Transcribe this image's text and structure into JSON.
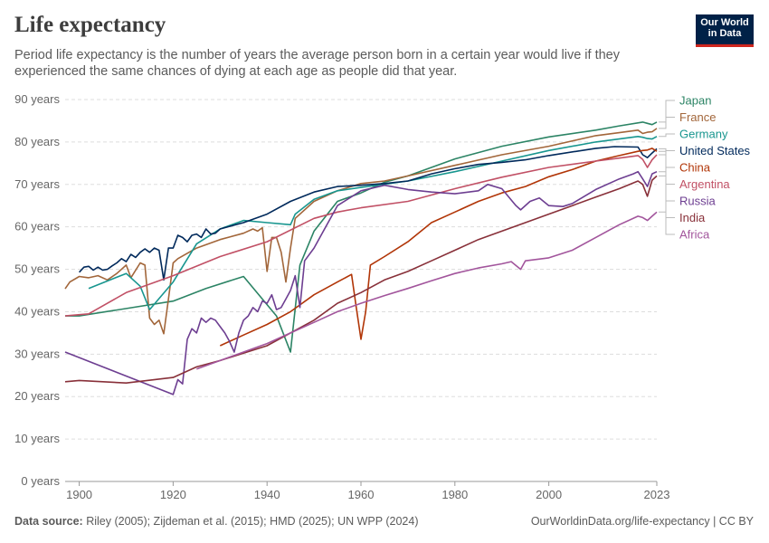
{
  "header": {
    "title": "Life expectancy",
    "subtitle": "Period life expectancy is the number of years the average person born in a certain year would live if they experienced the same chances of dying at each age as people did that year.",
    "logo_line1": "Our World",
    "logo_line2": "in Data"
  },
  "footer": {
    "source_label": "Data source:",
    "source_text": "Riley (2005); Zijdeman et al. (2015); HMD (2025); UN WPP (2024)",
    "link_text": "OurWorldinData.org/life-expectancy | CC BY"
  },
  "chart_data": {
    "type": "line",
    "x_ticks": [
      "1900",
      "1920",
      "1940",
      "1960",
      "1980",
      "2000",
      "2023"
    ],
    "y_ticks": [
      "0 years",
      "10 years",
      "20 years",
      "30 years",
      "40 years",
      "50 years",
      "60 years",
      "70 years",
      "80 years",
      "90 years"
    ],
    "xlim": [
      1897,
      2023
    ],
    "ylim": [
      0,
      90
    ],
    "grid": true,
    "legend_placement": "right, inline labels",
    "series": [
      {
        "name": "Japan",
        "color": "#2c8465",
        "points": [
          [
            1897,
            39
          ],
          [
            1900,
            39
          ],
          [
            1920,
            42.5
          ],
          [
            1927,
            45.5
          ],
          [
            1935,
            48.3
          ],
          [
            1942,
            39
          ],
          [
            1945,
            30.5
          ],
          [
            1947,
            51
          ],
          [
            1950,
            59
          ],
          [
            1955,
            66
          ],
          [
            1960,
            68
          ],
          [
            1965,
            70.5
          ],
          [
            1970,
            72
          ],
          [
            1980,
            76
          ],
          [
            1990,
            79
          ],
          [
            2000,
            81.2
          ],
          [
            2010,
            82.8
          ],
          [
            2015,
            83.8
          ],
          [
            2020,
            84.7
          ],
          [
            2021,
            84.4
          ],
          [
            2022,
            84.1
          ],
          [
            2023,
            84.7
          ]
        ]
      },
      {
        "name": "France",
        "color": "#a2663a",
        "points": [
          [
            1897,
            45.4
          ],
          [
            1898,
            47
          ],
          [
            1900,
            48.3
          ],
          [
            1902,
            48
          ],
          [
            1904,
            48.5
          ],
          [
            1906,
            47.5
          ],
          [
            1908,
            49
          ],
          [
            1910,
            51
          ],
          [
            1911,
            48
          ],
          [
            1913,
            51.5
          ],
          [
            1914,
            51
          ],
          [
            1915,
            38.5
          ],
          [
            1916,
            37
          ],
          [
            1917,
            38
          ],
          [
            1918,
            34.8
          ],
          [
            1919,
            43
          ],
          [
            1920,
            51.5
          ],
          [
            1921,
            52.5
          ],
          [
            1925,
            55
          ],
          [
            1930,
            57
          ],
          [
            1935,
            58.5
          ],
          [
            1937,
            59.5
          ],
          [
            1938,
            59
          ],
          [
            1939,
            59.8
          ],
          [
            1940,
            49.5
          ],
          [
            1941,
            57.5
          ],
          [
            1942,
            57.5
          ],
          [
            1943,
            54
          ],
          [
            1944,
            47
          ],
          [
            1945,
            55
          ],
          [
            1946,
            62
          ],
          [
            1950,
            66
          ],
          [
            1955,
            68.5
          ],
          [
            1960,
            70.2
          ],
          [
            1965,
            70.8
          ],
          [
            1970,
            72
          ],
          [
            1980,
            74.5
          ],
          [
            1990,
            77
          ],
          [
            2000,
            79
          ],
          [
            2010,
            81.5
          ],
          [
            2015,
            82.2
          ],
          [
            2019,
            82.8
          ],
          [
            2020,
            82
          ],
          [
            2021,
            82.3
          ],
          [
            2022,
            82.4
          ],
          [
            2023,
            83.2
          ]
        ]
      },
      {
        "name": "Germany",
        "color": "#18968f",
        "points": [
          [
            1902,
            45.5
          ],
          [
            1910,
            49
          ],
          [
            1913,
            46
          ],
          [
            1915,
            40.5
          ],
          [
            1920,
            47
          ],
          [
            1925,
            56
          ],
          [
            1930,
            59.5
          ],
          [
            1935,
            61.5
          ],
          [
            1940,
            61
          ],
          [
            1945,
            60.5
          ],
          [
            1946,
            63
          ],
          [
            1950,
            66.5
          ],
          [
            1955,
            68.5
          ],
          [
            1960,
            69.3
          ],
          [
            1970,
            70.8
          ],
          [
            1980,
            73
          ],
          [
            1990,
            75.5
          ],
          [
            2000,
            78
          ],
          [
            2010,
            80
          ],
          [
            2019,
            81.3
          ],
          [
            2020,
            81.1
          ],
          [
            2021,
            80.8
          ],
          [
            2022,
            80.7
          ],
          [
            2023,
            81.3
          ]
        ]
      },
      {
        "name": "United States",
        "color": "#00295b",
        "points": [
          [
            1900,
            49.3
          ],
          [
            1901,
            50.5
          ],
          [
            1902,
            50.7
          ],
          [
            1903,
            49.8
          ],
          [
            1904,
            50.5
          ],
          [
            1905,
            49.8
          ],
          [
            1906,
            50
          ],
          [
            1907,
            50.8
          ],
          [
            1908,
            51.5
          ],
          [
            1909,
            52.5
          ],
          [
            1910,
            51.8
          ],
          [
            1911,
            53.5
          ],
          [
            1912,
            52.8
          ],
          [
            1913,
            54
          ],
          [
            1914,
            54.8
          ],
          [
            1915,
            54
          ],
          [
            1916,
            55
          ],
          [
            1917,
            54.5
          ],
          [
            1918,
            47.5
          ],
          [
            1919,
            55
          ],
          [
            1920,
            55
          ],
          [
            1921,
            58
          ],
          [
            1922,
            57.5
          ],
          [
            1923,
            56.5
          ],
          [
            1924,
            58
          ],
          [
            1925,
            58.3
          ],
          [
            1926,
            57.5
          ],
          [
            1927,
            59.5
          ],
          [
            1928,
            58.3
          ],
          [
            1929,
            58.5
          ],
          [
            1930,
            59.5
          ],
          [
            1935,
            61
          ],
          [
            1940,
            63
          ],
          [
            1945,
            66
          ],
          [
            1950,
            68.2
          ],
          [
            1955,
            69.5
          ],
          [
            1960,
            69.8
          ],
          [
            1965,
            70.2
          ],
          [
            1970,
            70.8
          ],
          [
            1975,
            72.5
          ],
          [
            1980,
            73.7
          ],
          [
            1985,
            74.7
          ],
          [
            1990,
            75.2
          ],
          [
            1995,
            75.8
          ],
          [
            2000,
            76.8
          ],
          [
            2010,
            78.5
          ],
          [
            2014,
            78.9
          ],
          [
            2019,
            78.8
          ],
          [
            2020,
            77
          ],
          [
            2021,
            76.3
          ],
          [
            2022,
            77.4
          ],
          [
            2023,
            78.4
          ]
        ]
      },
      {
        "name": "China",
        "color": "#b13507",
        "points": [
          [
            1930,
            32
          ],
          [
            1935,
            34.5
          ],
          [
            1940,
            37
          ],
          [
            1945,
            40
          ],
          [
            1950,
            44
          ],
          [
            1955,
            47
          ],
          [
            1958,
            48.8
          ],
          [
            1959,
            41
          ],
          [
            1960,
            33.5
          ],
          [
            1961,
            40
          ],
          [
            1962,
            51
          ],
          [
            1965,
            53
          ],
          [
            1970,
            56.5
          ],
          [
            1975,
            61
          ],
          [
            1980,
            63.5
          ],
          [
            1985,
            66
          ],
          [
            1990,
            68
          ],
          [
            1995,
            69.5
          ],
          [
            2000,
            71.8
          ],
          [
            2005,
            73.5
          ],
          [
            2010,
            75.5
          ],
          [
            2015,
            76.8
          ],
          [
            2019,
            77.8
          ],
          [
            2020,
            78
          ],
          [
            2021,
            78.1
          ],
          [
            2022,
            78.5
          ],
          [
            2023,
            77.8
          ]
        ]
      },
      {
        "name": "Argentina",
        "color": "#c15065",
        "points": [
          [
            1897,
            39
          ],
          [
            1902,
            39.5
          ],
          [
            1910,
            44.5
          ],
          [
            1920,
            48.5
          ],
          [
            1930,
            53
          ],
          [
            1940,
            56.5
          ],
          [
            1950,
            62
          ],
          [
            1955,
            63.5
          ],
          [
            1960,
            64.5
          ],
          [
            1970,
            66
          ],
          [
            1980,
            69
          ],
          [
            1990,
            71.7
          ],
          [
            2000,
            74
          ],
          [
            2010,
            75.5
          ],
          [
            2015,
            76.2
          ],
          [
            2019,
            76.8
          ],
          [
            2020,
            75.9
          ],
          [
            2021,
            74
          ],
          [
            2022,
            75.8
          ],
          [
            2023,
            77
          ]
        ]
      },
      {
        "name": "Russia",
        "color": "#6d3e91",
        "points": [
          [
            1897,
            30.5
          ],
          [
            1920,
            20.5
          ],
          [
            1921,
            24
          ],
          [
            1922,
            23
          ],
          [
            1923,
            33.5
          ],
          [
            1924,
            36
          ],
          [
            1925,
            35
          ],
          [
            1926,
            38.5
          ],
          [
            1927,
            37.5
          ],
          [
            1928,
            38.5
          ],
          [
            1929,
            38
          ],
          [
            1930,
            36.5
          ],
          [
            1931,
            35
          ],
          [
            1932,
            33
          ],
          [
            1933,
            30.5
          ],
          [
            1934,
            35
          ],
          [
            1935,
            38
          ],
          [
            1936,
            39
          ],
          [
            1937,
            41
          ],
          [
            1938,
            40
          ],
          [
            1939,
            42.5
          ],
          [
            1940,
            42
          ],
          [
            1941,
            44
          ],
          [
            1942,
            40.5
          ],
          [
            1943,
            41
          ],
          [
            1944,
            43
          ],
          [
            1945,
            45
          ],
          [
            1946,
            48.5
          ],
          [
            1947,
            41
          ],
          [
            1948,
            52
          ],
          [
            1950,
            55
          ],
          [
            1955,
            65
          ],
          [
            1960,
            68.5
          ],
          [
            1965,
            69.8
          ],
          [
            1970,
            68.8
          ],
          [
            1975,
            68.2
          ],
          [
            1980,
            67.8
          ],
          [
            1985,
            68.5
          ],
          [
            1987,
            70
          ],
          [
            1990,
            69
          ],
          [
            1993,
            65
          ],
          [
            1994,
            64
          ],
          [
            1996,
            66
          ],
          [
            1998,
            66.8
          ],
          [
            2000,
            65
          ],
          [
            2003,
            64.8
          ],
          [
            2005,
            65.5
          ],
          [
            2010,
            68.8
          ],
          [
            2015,
            71.3
          ],
          [
            2018,
            72.5
          ],
          [
            2019,
            73
          ],
          [
            2020,
            71.3
          ],
          [
            2021,
            69.5
          ],
          [
            2022,
            72.5
          ],
          [
            2023,
            73
          ]
        ]
      },
      {
        "name": "India",
        "color": "#883039",
        "points": [
          [
            1897,
            23.5
          ],
          [
            1900,
            23.8
          ],
          [
            1910,
            23.2
          ],
          [
            1920,
            24.5
          ],
          [
            1925,
            27
          ],
          [
            1930,
            28.5
          ],
          [
            1940,
            32
          ],
          [
            1950,
            38
          ],
          [
            1955,
            42
          ],
          [
            1960,
            44.5
          ],
          [
            1965,
            47.5
          ],
          [
            1970,
            49.5
          ],
          [
            1975,
            52
          ],
          [
            1980,
            54.5
          ],
          [
            1985,
            57
          ],
          [
            1990,
            59
          ],
          [
            1995,
            61
          ],
          [
            2000,
            63
          ],
          [
            2005,
            65
          ],
          [
            2010,
            67
          ],
          [
            2015,
            69
          ],
          [
            2019,
            70.8
          ],
          [
            2020,
            70
          ],
          [
            2021,
            67.2
          ],
          [
            2022,
            71
          ],
          [
            2023,
            72
          ]
        ]
      },
      {
        "name": "Africa",
        "color": "#a2559c",
        "points": [
          [
            1925,
            26.5
          ],
          [
            1930,
            28.5
          ],
          [
            1935,
            30.5
          ],
          [
            1940,
            32.5
          ],
          [
            1945,
            35
          ],
          [
            1950,
            37.5
          ],
          [
            1955,
            40
          ],
          [
            1960,
            42
          ],
          [
            1965,
            43.8
          ],
          [
            1970,
            45.5
          ],
          [
            1975,
            47.3
          ],
          [
            1980,
            49
          ],
          [
            1985,
            50.3
          ],
          [
            1990,
            51.3
          ],
          [
            1992,
            51.8
          ],
          [
            1994,
            50
          ],
          [
            1995,
            52
          ],
          [
            2000,
            52.7
          ],
          [
            2005,
            54.5
          ],
          [
            2010,
            57.5
          ],
          [
            2015,
            60.5
          ],
          [
            2019,
            62.5
          ],
          [
            2020,
            62.2
          ],
          [
            2021,
            61.5
          ],
          [
            2022,
            62.5
          ],
          [
            2023,
            63.5
          ]
        ]
      }
    ]
  }
}
